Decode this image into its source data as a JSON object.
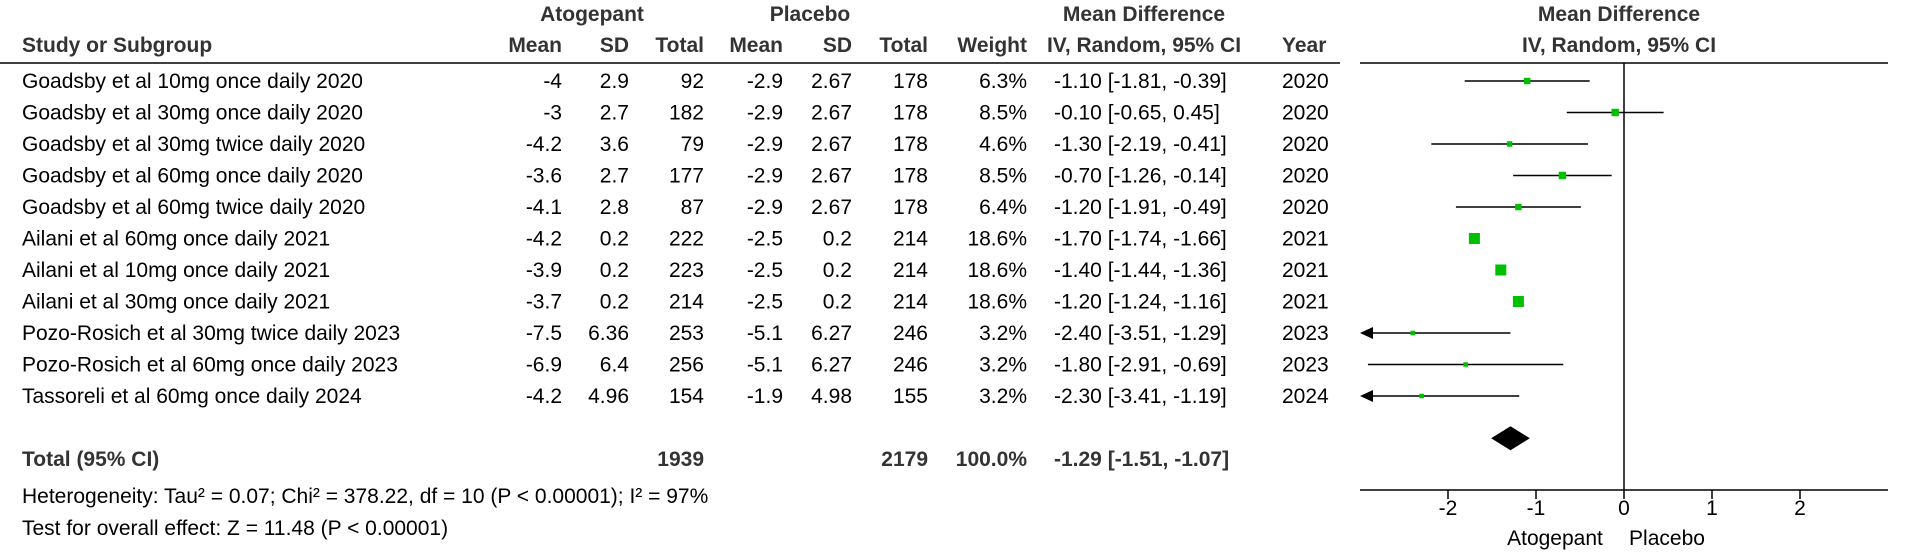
{
  "header": {
    "group_atogepant": "Atogepant",
    "group_placebo": "Placebo",
    "group_md_left": "Mean Difference",
    "group_md_right": "Mean Difference",
    "col_study": "Study or Subgroup",
    "col_mean_a": "Mean",
    "col_sd_a": "SD",
    "col_total_a": "Total",
    "col_mean_p": "Mean",
    "col_sd_p": "SD",
    "col_total_p": "Total",
    "col_weight": "Weight",
    "col_ci_left": "IV, Random, 95% CI",
    "col_year": "Year",
    "col_ci_right": "IV, Random, 95% CI"
  },
  "rows": [
    {
      "study": "Goadsby et al 10mg once daily 2020",
      "mean_a": "-4",
      "sd_a": "2.9",
      "total_a": "92",
      "mean_p": "-2.9",
      "sd_p": "2.67",
      "total_p": "178",
      "weight": "6.3%",
      "ci": "-1.10 [-1.81, -0.39]",
      "year": "2020"
    },
    {
      "study": "Goadsby et al 30mg once daily 2020",
      "mean_a": "-3",
      "sd_a": "2.7",
      "total_a": "182",
      "mean_p": "-2.9",
      "sd_p": "2.67",
      "total_p": "178",
      "weight": "8.5%",
      "ci": "-0.10 [-0.65, 0.45]",
      "year": "2020"
    },
    {
      "study": "Goadsby et al 30mg twice daily 2020",
      "mean_a": "-4.2",
      "sd_a": "3.6",
      "total_a": "79",
      "mean_p": "-2.9",
      "sd_p": "2.67",
      "total_p": "178",
      "weight": "4.6%",
      "ci": "-1.30 [-2.19, -0.41]",
      "year": "2020"
    },
    {
      "study": "Goadsby et al 60mg once daily 2020",
      "mean_a": "-3.6",
      "sd_a": "2.7",
      "total_a": "177",
      "mean_p": "-2.9",
      "sd_p": "2.67",
      "total_p": "178",
      "weight": "8.5%",
      "ci": "-0.70 [-1.26, -0.14]",
      "year": "2020"
    },
    {
      "study": "Goadsby et al 60mg twice daily 2020",
      "mean_a": "-4.1",
      "sd_a": "2.8",
      "total_a": "87",
      "mean_p": "-2.9",
      "sd_p": "2.67",
      "total_p": "178",
      "weight": "6.4%",
      "ci": "-1.20 [-1.91, -0.49]",
      "year": "2020"
    },
    {
      "study": "Ailani et al 60mg once daily 2021",
      "mean_a": "-4.2",
      "sd_a": "0.2",
      "total_a": "222",
      "mean_p": "-2.5",
      "sd_p": "0.2",
      "total_p": "214",
      "weight": "18.6%",
      "ci": "-1.70 [-1.74, -1.66]",
      "year": "2021"
    },
    {
      "study": "Ailani et al 10mg once daily 2021",
      "mean_a": "-3.9",
      "sd_a": "0.2",
      "total_a": "223",
      "mean_p": "-2.5",
      "sd_p": "0.2",
      "total_p": "214",
      "weight": "18.6%",
      "ci": "-1.40 [-1.44, -1.36]",
      "year": "2021"
    },
    {
      "study": "Ailani et al 30mg once daily 2021",
      "mean_a": "-3.7",
      "sd_a": "0.2",
      "total_a": "214",
      "mean_p": "-2.5",
      "sd_p": "0.2",
      "total_p": "214",
      "weight": "18.6%",
      "ci": "-1.20 [-1.24, -1.16]",
      "year": "2021"
    },
    {
      "study": "Pozo-Rosich et al 30mg twice daily 2023",
      "mean_a": "-7.5",
      "sd_a": "6.36",
      "total_a": "253",
      "mean_p": "-5.1",
      "sd_p": "6.27",
      "total_p": "246",
      "weight": "3.2%",
      "ci": "-2.40 [-3.51, -1.29]",
      "year": "2023"
    },
    {
      "study": "Pozo-Rosich et al 60mg once daily 2023",
      "mean_a": "-6.9",
      "sd_a": "6.4",
      "total_a": "256",
      "mean_p": "-5.1",
      "sd_p": "6.27",
      "total_p": "246",
      "weight": "3.2%",
      "ci": "-1.80 [-2.91, -0.69]",
      "year": "2023"
    },
    {
      "study": "Tassoreli et al 60mg once daily 2024",
      "mean_a": "-4.2",
      "sd_a": "4.96",
      "total_a": "154",
      "mean_p": "-1.9",
      "sd_p": "4.98",
      "total_p": "155",
      "weight": "3.2%",
      "ci": "-2.30 [-3.41, -1.19]",
      "year": "2024"
    }
  ],
  "total": {
    "label": "Total (95% CI)",
    "total_a": "1939",
    "total_p": "2179",
    "weight": "100.0%",
    "ci": "-1.29 [-1.51, -1.07]"
  },
  "footer": {
    "heterogeneity": "Heterogeneity: Tau² = 0.07; Chi² = 378.22, df = 10 (P < 0.00001); I² = 97%",
    "overall": "Test for overall effect: Z = 11.48 (P < 0.00001)"
  },
  "axis": {
    "favours_left": "Atogepant",
    "favours_right": "Placebo"
  },
  "colors": {
    "point": "#00c000",
    "line": "#000000",
    "diamond": "#000000",
    "header_text": "#333333"
  },
  "chart_data": {
    "type": "scatter",
    "title": "Mean Difference",
    "subtitle": "IV, Random, 95% CI",
    "xlabel": "",
    "ylabel": "",
    "xlim": [
      -3,
      3
    ],
    "ticks": [
      -2,
      -1,
      0,
      1,
      2
    ],
    "tick_labels": [
      "-2",
      "-1",
      "0",
      "1",
      "2"
    ],
    "grid": false,
    "series": [
      {
        "name": "",
        "points": [
          {
            "y": "Goadsby et al 10mg once daily 2020",
            "x": -1.1,
            "lo": -1.81,
            "hi": -0.39,
            "weight": 6.3
          },
          {
            "y": "Goadsby et al 30mg once daily 2020",
            "x": -0.1,
            "lo": -0.65,
            "hi": 0.45,
            "weight": 8.5
          },
          {
            "y": "Goadsby et al 30mg twice daily 2020",
            "x": -1.3,
            "lo": -2.19,
            "hi": -0.41,
            "weight": 4.6
          },
          {
            "y": "Goadsby et al 60mg once daily 2020",
            "x": -0.7,
            "lo": -1.26,
            "hi": -0.14,
            "weight": 8.5
          },
          {
            "y": "Goadsby et al 60mg twice daily 2020",
            "x": -1.2,
            "lo": -1.91,
            "hi": -0.49,
            "weight": 6.4
          },
          {
            "y": "Ailani et al 60mg once daily 2021",
            "x": -1.7,
            "lo": -1.74,
            "hi": -1.66,
            "weight": 18.6
          },
          {
            "y": "Ailani et al 10mg once daily 2021",
            "x": -1.4,
            "lo": -1.44,
            "hi": -1.36,
            "weight": 18.6
          },
          {
            "y": "Ailani et al 30mg once daily 2021",
            "x": -1.2,
            "lo": -1.24,
            "hi": -1.16,
            "weight": 18.6
          },
          {
            "y": "Pozo-Rosich et al 30mg twice daily 2023",
            "x": -2.4,
            "lo": -3.51,
            "hi": -1.29,
            "weight": 3.2
          },
          {
            "y": "Pozo-Rosich et al 60mg once daily 2023",
            "x": -1.8,
            "lo": -2.91,
            "hi": -0.69,
            "weight": 3.2
          },
          {
            "y": "Tassoreli et al 60mg once daily 2024",
            "x": -2.3,
            "lo": -3.41,
            "hi": -1.19,
            "weight": 3.2
          }
        ]
      }
    ],
    "summary": {
      "y": "Total (95% CI)",
      "x": -1.29,
      "lo": -1.51,
      "hi": -1.07,
      "weight": 100.0
    }
  }
}
